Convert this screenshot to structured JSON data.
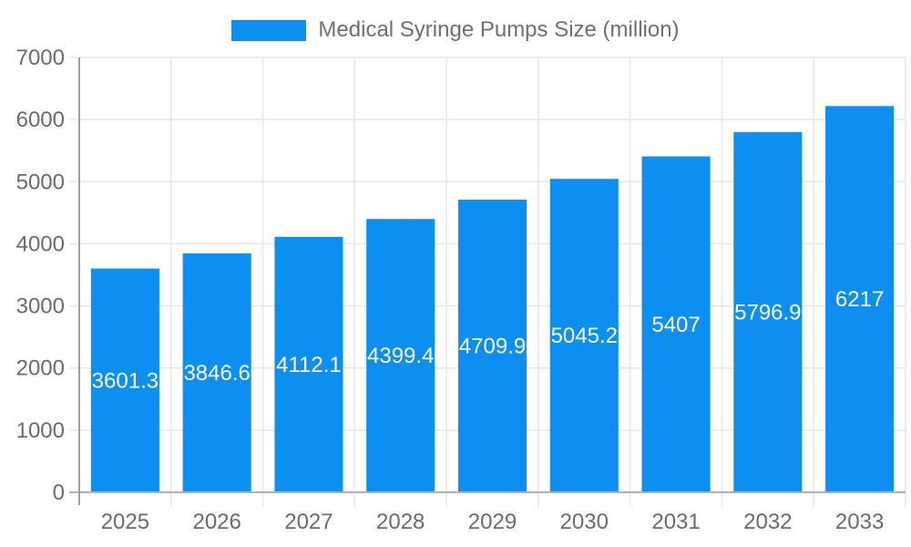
{
  "chart_data": {
    "type": "bar",
    "title": "Medical Syringe Pumps Size (million)",
    "categories": [
      "2025",
      "2026",
      "2027",
      "2028",
      "2029",
      "2030",
      "2031",
      "2032",
      "2033"
    ],
    "values": [
      3601.3,
      3846.6,
      4112.1,
      4399.4,
      4709.9,
      5045.2,
      5407,
      5796.9,
      6217
    ],
    "value_labels": [
      "3601.3",
      "3846.6",
      "4112.1",
      "4399.4",
      "4709.9",
      "5045.2",
      "5407",
      "5796.9",
      "6217"
    ],
    "xlabel": "",
    "ylabel": "",
    "ylim": [
      0,
      7000
    ],
    "ytick_step": 1000,
    "ytick_labels": [
      "0",
      "1000",
      "2000",
      "3000",
      "4000",
      "5000",
      "6000",
      "7000"
    ],
    "grid": true,
    "legend_position": "top",
    "colors": {
      "bar": "#0d8ff2",
      "grid": "#e7e7e7",
      "axis": "#9e9e9e",
      "zero_line": "#b0b0b0",
      "tick_label": "#6b6b6b",
      "title": "#6f6f6f",
      "value_label": "#ffffff"
    }
  }
}
